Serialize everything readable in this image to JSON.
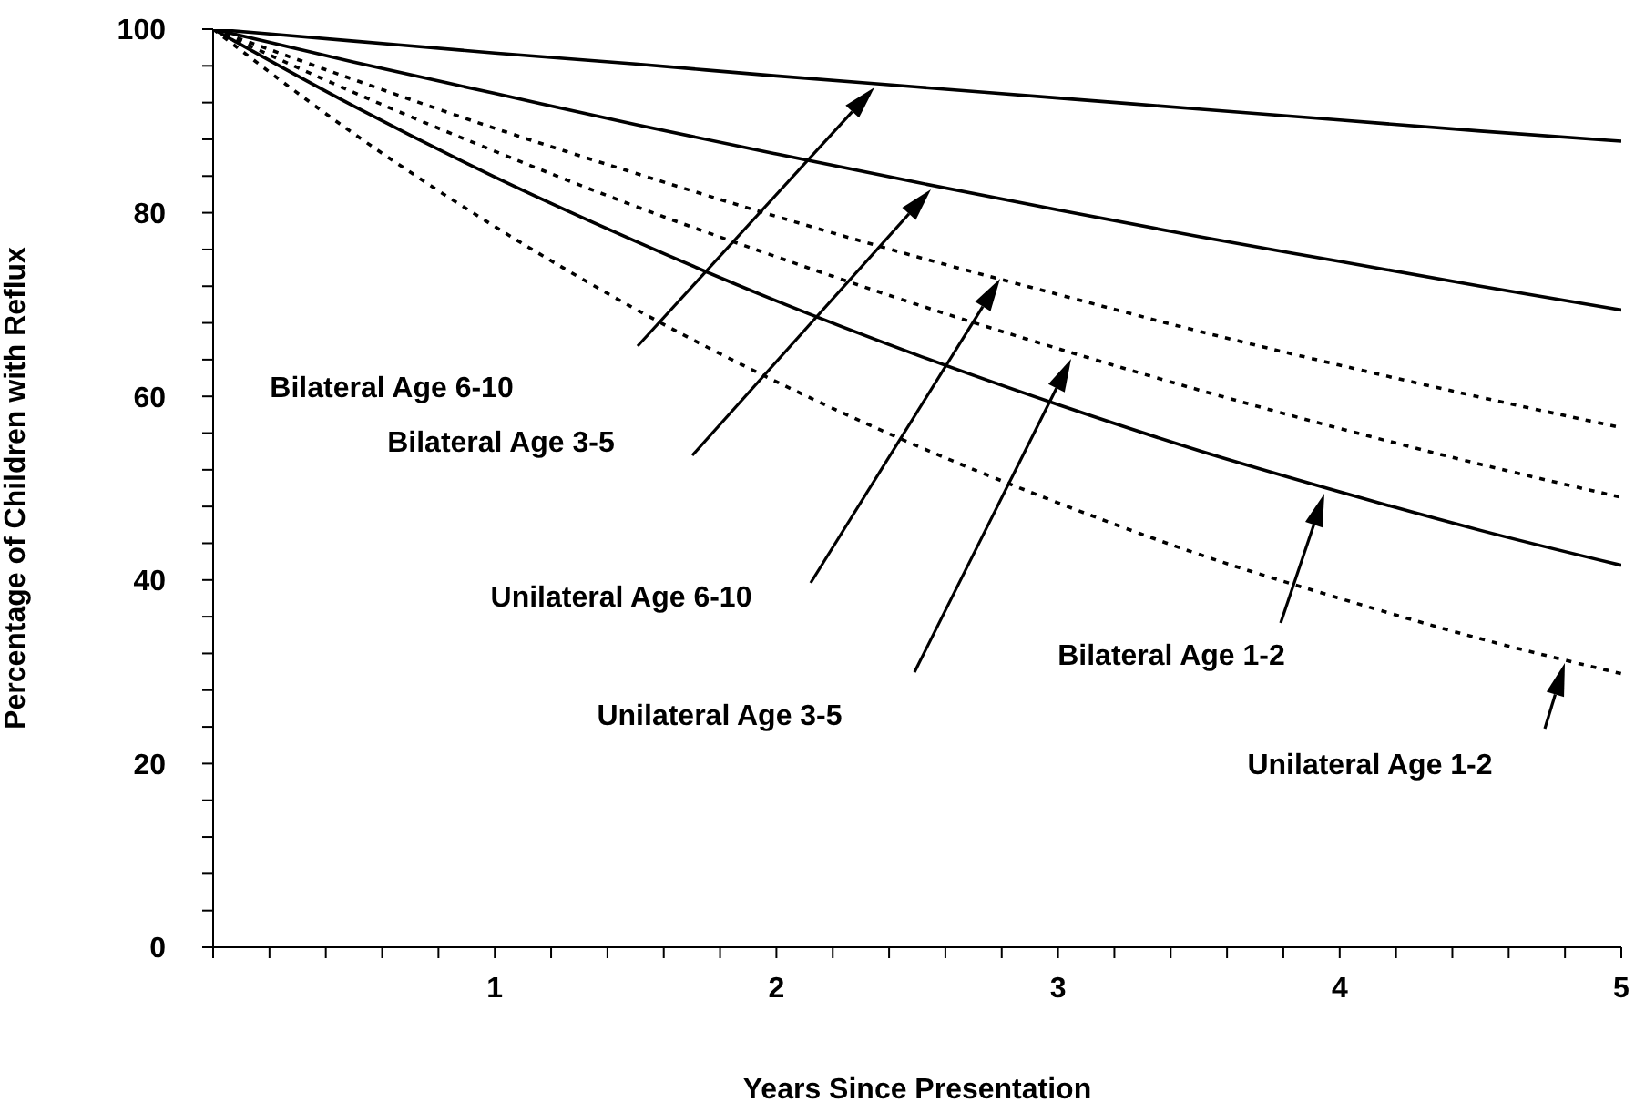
{
  "chart_data": {
    "type": "line",
    "xlabel": "Years Since Presentation",
    "ylabel": "Percentage of Children with Reflux",
    "x": [
      0,
      0.5,
      1,
      1.5,
      2,
      2.5,
      3,
      3.5,
      4,
      4.5,
      5
    ],
    "series": [
      {
        "color": "#000000",
        "line_style": "solid",
        "values": [
          100,
          98.7,
          97.4,
          96.2,
          94.9,
          93.7,
          92.5,
          91.3,
          90.1,
          88.9,
          87.8
        ]
      },
      {
        "color": "#000000",
        "line_style": "solid",
        "values": [
          100,
          96.4,
          93.0,
          89.6,
          86.4,
          83.3,
          80.3,
          77.4,
          74.7,
          72.0,
          69.4
        ]
      },
      {
        "color": "#000000",
        "line_style": "dotted",
        "values": [
          100,
          94.5,
          89.2,
          84.3,
          79.6,
          75.2,
          71.1,
          67.1,
          63.4,
          59.9,
          56.6
        ]
      },
      {
        "color": "#000000",
        "line_style": "dotted",
        "values": [
          100,
          93.1,
          86.7,
          80.7,
          75.2,
          70.0,
          65.2,
          60.7,
          56.5,
          52.6,
          49.0
        ]
      },
      {
        "color": "#000000",
        "line_style": "solid",
        "values": [
          100,
          91.6,
          83.9,
          76.9,
          70.4,
          64.5,
          59.1,
          54.1,
          49.6,
          45.4,
          41.6
        ]
      },
      {
        "color": "#000000",
        "line_style": "dotted",
        "values": [
          100,
          88.6,
          78.5,
          69.5,
          61.6,
          54.6,
          48.4,
          42.8,
          38.0,
          33.6,
          29.8
        ]
      }
    ],
    "xlim": [
      0,
      5
    ],
    "xticks": [
      {
        "value": 0,
        "label": null
      },
      {
        "value": 0.2,
        "label": null
      },
      {
        "value": 0.4,
        "label": null
      },
      {
        "value": 0.6,
        "label": null
      },
      {
        "value": 0.8,
        "label": null
      },
      1,
      {
        "value": 1.2,
        "label": null
      },
      {
        "value": 1.4,
        "label": null
      },
      {
        "value": 1.6,
        "label": null
      },
      {
        "value": 1.8,
        "label": null
      },
      2,
      {
        "value": 2.2,
        "label": null
      },
      {
        "value": 2.4,
        "label": null
      },
      {
        "value": 2.6,
        "label": null
      },
      {
        "value": 2.8,
        "label": null
      },
      3,
      {
        "value": 3.2,
        "label": null
      },
      {
        "value": 3.4,
        "label": null
      },
      {
        "value": 3.6,
        "label": null
      },
      {
        "value": 3.8,
        "label": null
      },
      4,
      {
        "value": 4.2,
        "label": null
      },
      {
        "value": 4.4,
        "label": null
      },
      {
        "value": 4.6,
        "label": null
      },
      {
        "value": 4.8,
        "label": null
      },
      5
    ],
    "ylim": [
      0,
      100
    ],
    "yticks": [
      0,
      {
        "value": 4,
        "label": null
      },
      {
        "value": 8,
        "label": null
      },
      {
        "value": 12,
        "label": null
      },
      {
        "value": 16,
        "label": null
      },
      20,
      {
        "value": 24,
        "label": null
      },
      {
        "value": 28,
        "label": null
      },
      {
        "value": 32,
        "label": null
      },
      {
        "value": 36,
        "label": null
      },
      40,
      {
        "value": 44,
        "label": null
      },
      {
        "value": 48,
        "label": null
      },
      {
        "value": 52,
        "label": null
      },
      {
        "value": 56,
        "label": null
      },
      60,
      {
        "value": 64,
        "label": null
      },
      {
        "value": 68,
        "label": null
      },
      {
        "value": 72,
        "label": null
      },
      {
        "value": 76,
        "label": null
      },
      80,
      {
        "value": 84,
        "label": null
      },
      {
        "value": 88,
        "label": null
      },
      {
        "value": 92,
        "label": null
      },
      {
        "value": 96,
        "label": null
      },
      100
    ],
    "grid": false,
    "legend": false,
    "marker": "none",
    "annotations": [
      "Bilateral Age 6-10",
      "Bilateral Age 3-5",
      "Unilateral Age 6-10",
      "Unilateral Age 3-5",
      "Bilateral Age 1-2",
      "Unilateral Age 1-2"
    ]
  }
}
